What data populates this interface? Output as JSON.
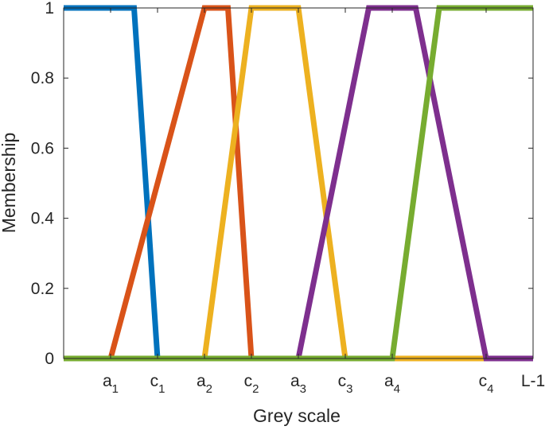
{
  "chart_data": {
    "type": "line",
    "title": "",
    "xlabel": "Grey scale",
    "ylabel": "Membership",
    "xlim": [
      0,
      10
    ],
    "ylim": [
      0,
      1
    ],
    "grid": false,
    "legend": "none",
    "x_ticks": [
      {
        "x": 1,
        "base": "a",
        "sub": "1"
      },
      {
        "x": 2,
        "base": "c",
        "sub": "1"
      },
      {
        "x": 3,
        "base": "a",
        "sub": "2"
      },
      {
        "x": 4,
        "base": "c",
        "sub": "2"
      },
      {
        "x": 5,
        "base": "a",
        "sub": "3"
      },
      {
        "x": 6,
        "base": "c",
        "sub": "3"
      },
      {
        "x": 7,
        "base": "a",
        "sub": "4"
      },
      {
        "x": 9,
        "base": "c",
        "sub": "4"
      },
      {
        "x": 10,
        "base": "L-1",
        "sub": ""
      }
    ],
    "y_ticks": [
      {
        "y": 0,
        "label": "0"
      },
      {
        "y": 0.2,
        "label": "0.2"
      },
      {
        "y": 0.4,
        "label": "0.4"
      },
      {
        "y": 0.6,
        "label": "0.6"
      },
      {
        "y": 0.8,
        "label": "0.8"
      },
      {
        "y": 1,
        "label": "1"
      }
    ],
    "series": [
      {
        "color": "#0072BD",
        "points": [
          [
            0,
            1
          ],
          [
            1.5,
            1
          ],
          [
            2,
            0
          ],
          [
            10,
            0
          ]
        ]
      },
      {
        "color": "#D95319",
        "points": [
          [
            0,
            0
          ],
          [
            1,
            0
          ],
          [
            3,
            1
          ],
          [
            3.5,
            1
          ],
          [
            4,
            0
          ],
          [
            10,
            0
          ]
        ]
      },
      {
        "color": "#EDB120",
        "points": [
          [
            0,
            0
          ],
          [
            3,
            0
          ],
          [
            4,
            1
          ],
          [
            5,
            1
          ],
          [
            6,
            0
          ],
          [
            10,
            0
          ]
        ]
      },
      {
        "color": "#7E2F8E",
        "points": [
          [
            0,
            0
          ],
          [
            5,
            0
          ],
          [
            6.5,
            1
          ],
          [
            7.5,
            1
          ],
          [
            9,
            0
          ],
          [
            10,
            0
          ]
        ]
      },
      {
        "color": "#77AC30",
        "points": [
          [
            0,
            0
          ],
          [
            7,
            0
          ],
          [
            8,
            1
          ],
          [
            10,
            1
          ]
        ]
      }
    ]
  }
}
